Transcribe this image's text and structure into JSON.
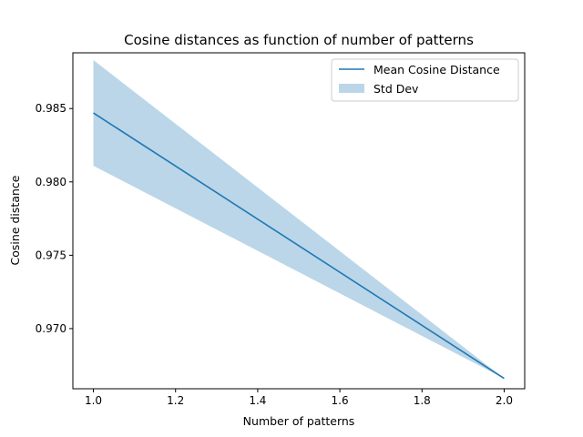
{
  "chart_data": {
    "type": "line",
    "title": "Cosine distances as function of number of patterns",
    "xlabel": "Number of patterns",
    "ylabel": "Cosine distance",
    "xlim": [
      0.95,
      2.05
    ],
    "ylim": [
      0.9659,
      0.9888
    ],
    "xticks": [
      1.0,
      1.2,
      1.4,
      1.6,
      1.8,
      2.0
    ],
    "xtick_labels": [
      "1.0",
      "1.2",
      "1.4",
      "1.6",
      "1.8",
      "2.0"
    ],
    "yticks": [
      0.97,
      0.975,
      0.98,
      0.985
    ],
    "ytick_labels": [
      "0.970",
      "0.975",
      "0.980",
      "0.985"
    ],
    "grid": false,
    "legend_position": "top-right",
    "x": [
      1.0,
      2.0
    ],
    "series": [
      {
        "name": "Mean Cosine Distance",
        "kind": "line",
        "values": [
          0.9847,
          0.9666
        ],
        "color": "#1f77b4"
      },
      {
        "name": "Std Dev",
        "kind": "band",
        "lower": [
          0.9811,
          0.9666
        ],
        "upper": [
          0.9883,
          0.9666
        ],
        "color": "#1f77b4",
        "opacity": 0.3
      }
    ]
  }
}
